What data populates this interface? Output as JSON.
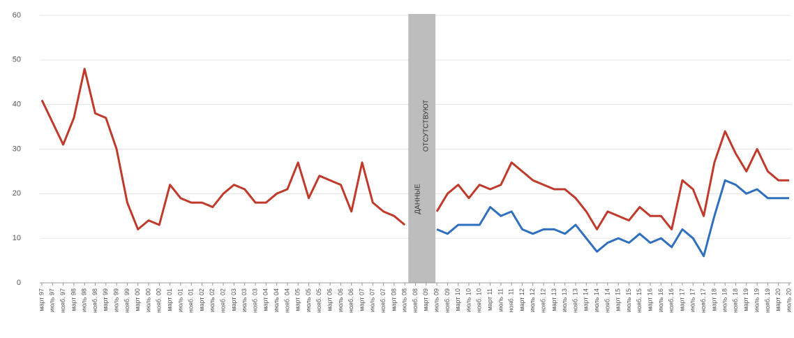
{
  "chart_data": {
    "type": "line",
    "categories": [
      "март 97",
      "июль 97",
      "нояб. 97",
      "март 98",
      "июль 98",
      "нояб. 98",
      "март 99",
      "июль 99",
      "нояб. 99",
      "март 00",
      "июль 00",
      "нояб. 00",
      "март 01",
      "июль 01",
      "нояб. 01",
      "март 02",
      "июль 02",
      "нояб. 02",
      "март 03",
      "июль 03",
      "нояб. 03",
      "март 04",
      "июль 04",
      "нояб. 04",
      "март 05",
      "июль 05",
      "нояб. 05",
      "март 06",
      "июль 06",
      "нояб. 06",
      "март 07",
      "июль 07",
      "нояб. 07",
      "март 08",
      "июль 08",
      "нояб. 08",
      "март 09",
      "июль 09",
      "нояб. 09",
      "март 10",
      "июль 10",
      "нояб. 10",
      "март 11",
      "июль 11",
      "нояб. 11",
      "март 12",
      "июль 12",
      "нояб. 12",
      "март 13",
      "июль 13",
      "нояб. 13",
      "март 14",
      "июль 14",
      "нояб. 14",
      "март 15",
      "июль 15",
      "нояб. 15",
      "март 16",
      "июль 16",
      "нояб. 16",
      "март 17",
      "июль 17",
      "нояб. 17",
      "март 18",
      "июль 18",
      "нояб. 18",
      "март 19",
      "июль 19",
      "нояб. 19",
      "март 20",
      "июль 20"
    ],
    "series": [
      {
        "color": "#c0392b",
        "values": [
          41,
          36,
          31,
          37,
          48,
          38,
          37,
          30,
          18,
          12,
          14,
          13,
          22,
          19,
          18,
          18,
          17,
          20,
          22,
          21,
          18,
          18,
          20,
          21,
          27,
          19,
          24,
          23,
          22,
          16,
          27,
          18,
          16,
          15,
          13,
          null,
          null,
          16,
          20,
          22,
          19,
          22,
          21,
          22,
          27,
          25,
          23,
          22,
          21,
          21,
          19,
          16,
          12,
          16,
          15,
          14,
          17,
          15,
          15,
          12,
          23,
          21,
          15,
          27,
          34,
          29,
          25,
          30,
          25,
          23,
          23
        ]
      },
      {
        "color": "#2f6fbf",
        "values": [
          null,
          null,
          null,
          null,
          null,
          null,
          null,
          null,
          null,
          null,
          null,
          null,
          null,
          null,
          null,
          null,
          null,
          null,
          null,
          null,
          null,
          null,
          null,
          null,
          null,
          null,
          null,
          null,
          null,
          null,
          null,
          null,
          null,
          null,
          null,
          null,
          null,
          12,
          11,
          13,
          13,
          13,
          17,
          15,
          16,
          12,
          11,
          12,
          12,
          11,
          13,
          10,
          7,
          9,
          10,
          9,
          11,
          9,
          10,
          8,
          12,
          10,
          6,
          15,
          23,
          22,
          20,
          21,
          19,
          19,
          19
        ]
      }
    ],
    "annotations": [
      "ДАННЫЕ",
      "ОТСУТСТВУЮТ"
    ],
    "band_color": "#bdbdbd",
    "ylim": [
      0,
      60
    ],
    "yticks": [
      0,
      10,
      20,
      30,
      40,
      50,
      60
    ],
    "grid": true
  }
}
